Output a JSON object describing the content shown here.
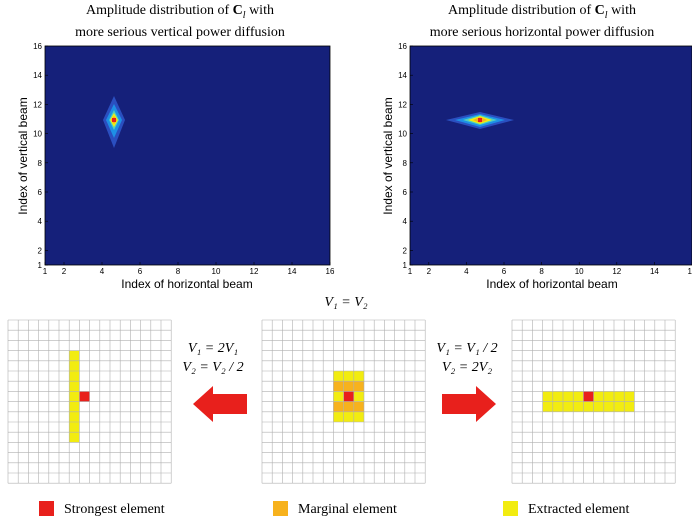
{
  "figure": {
    "left_plot": {
      "title_line1": "Amplitude distribution of ",
      "title_symbol": "C",
      "title_subscript": "l",
      "title_suffix": " with",
      "title_line2": "more serious vertical power diffusion",
      "ylabel": "Index of vertical beam",
      "xlabel": "Index of horizontal beam"
    },
    "right_plot": {
      "title_line1": "Amplitude distribution of ",
      "title_symbol": "C",
      "title_subscript": "l",
      "title_suffix": " with",
      "title_line2": "more serious horizontal power diffusion",
      "ylabel": "Index of vertical beam",
      "xlabel": "Index of horizontal beam"
    },
    "x_ticks": [
      "1",
      "2",
      "4",
      "6",
      "8",
      "10",
      "12",
      "14",
      "16"
    ],
    "y_ticks": [
      "1",
      "2",
      "4",
      "6",
      "8",
      "10",
      "12",
      "14",
      "16"
    ],
    "equations": {
      "center": "V₁ = V₂",
      "left_line1": "V₁ = 2V₁",
      "left_line2": "V₂ = V₂ / 2",
      "right_line1": "V₁ = V₁ / 2",
      "right_line2": "V₂ = 2V₂"
    },
    "legend": [
      {
        "label": "Strongest element",
        "color": "#e8201c"
      },
      {
        "label": "Marginal element",
        "color": "#f7b21d"
      },
      {
        "label": "Extracted element",
        "color": "#f2ec10"
      }
    ],
    "colors": {
      "background_field": "#15207a",
      "arrow": "#e8201c",
      "grid_line": "#b0b0b0",
      "strongest": "#e8201c",
      "marginal": "#f7b21d",
      "extracted": "#f2ec10"
    }
  },
  "chart_data": [
    {
      "type": "heatmap",
      "title": "Amplitude distribution of C_l with more serious vertical power diffusion",
      "xlabel": "Index of horizontal beam",
      "ylabel": "Index of vertical beam",
      "xlim": [
        1,
        16
      ],
      "ylim": [
        1,
        16
      ],
      "peak": {
        "x": 5,
        "y": 11
      },
      "spread_x": 0.45,
      "spread_y": 1.9
    },
    {
      "type": "heatmap",
      "title": "Amplitude distribution of C_l with more serious horizontal power diffusion",
      "xlabel": "Index of horizontal beam",
      "ylabel": "Index of vertical beam",
      "xlim": [
        1,
        16
      ],
      "ylim": [
        1,
        16
      ],
      "peak": {
        "x": 5,
        "y": 11
      },
      "spread_x": 1.9,
      "spread_y": 0.45
    }
  ],
  "grids": {
    "size": 16,
    "left": {
      "strongest": [
        [
          7,
          7
        ]
      ],
      "marginal": [],
      "extracted": [
        [
          6,
          3
        ],
        [
          6,
          4
        ],
        [
          6,
          5
        ],
        [
          6,
          6
        ],
        [
          6,
          7
        ],
        [
          6,
          8
        ],
        [
          6,
          9
        ],
        [
          6,
          10
        ],
        [
          6,
          11
        ]
      ]
    },
    "center": {
      "strongest": [
        [
          8,
          7
        ]
      ],
      "marginal": [
        [
          7,
          6
        ],
        [
          9,
          6
        ],
        [
          7,
          8
        ],
        [
          9,
          8
        ],
        [
          8,
          6
        ],
        [
          8,
          8
        ]
      ],
      "extracted": [
        [
          7,
          5
        ],
        [
          8,
          5
        ],
        [
          9,
          5
        ],
        [
          7,
          9
        ],
        [
          8,
          9
        ],
        [
          9,
          9
        ],
        [
          7,
          6
        ],
        [
          7,
          7
        ],
        [
          7,
          8
        ],
        [
          9,
          6
        ],
        [
          9,
          7
        ],
        [
          9,
          8
        ]
      ]
    },
    "right": {
      "strongest": [
        [
          7,
          7
        ]
      ],
      "marginal": [],
      "extracted": [
        [
          3,
          7
        ],
        [
          4,
          7
        ],
        [
          5,
          7
        ],
        [
          6,
          7
        ],
        [
          7,
          7
        ],
        [
          8,
          7
        ],
        [
          9,
          7
        ],
        [
          10,
          7
        ],
        [
          11,
          7
        ],
        [
          3,
          8
        ],
        [
          4,
          8
        ],
        [
          5,
          8
        ],
        [
          6,
          8
        ],
        [
          7,
          8
        ],
        [
          8,
          8
        ],
        [
          9,
          8
        ],
        [
          10,
          8
        ],
        [
          11,
          8
        ]
      ]
    }
  }
}
